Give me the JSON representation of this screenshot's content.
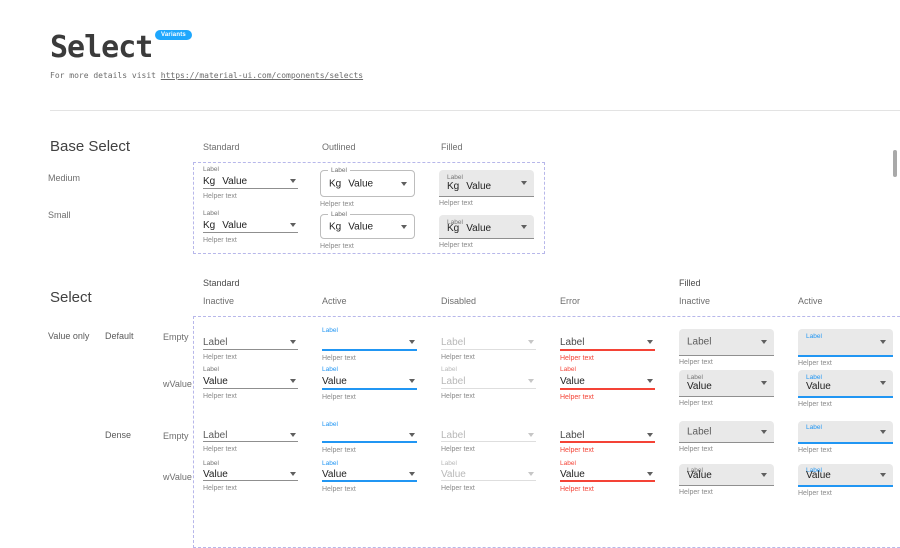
{
  "header": {
    "title": "Select",
    "badge": "Variants",
    "intro_prefix": "For more details visit ",
    "link": "https://material-ui.com/components/selects"
  },
  "base_select": {
    "heading": "Base Select",
    "column_headers": [
      "Standard",
      "Outlined",
      "Filled"
    ],
    "row_labels": [
      "Medium",
      "Small"
    ],
    "field": {
      "label": "Label",
      "adornment": "Kg",
      "value": "Value",
      "helper": "Helper text"
    }
  },
  "select_section": {
    "heading": "Select",
    "group_headers": [
      "Standard",
      "Filled"
    ],
    "state_headers": [
      "Inactive",
      "Active",
      "Disabled",
      "Error",
      "Inactive",
      "Active"
    ],
    "columns": [
      {
        "group": "Standard",
        "variant": "standard",
        "state": "inactive"
      },
      {
        "group": "Standard",
        "variant": "standard",
        "state": "active"
      },
      {
        "group": "Standard",
        "variant": "standard",
        "state": "disabled"
      },
      {
        "group": "Standard",
        "variant": "standard",
        "state": "error"
      },
      {
        "group": "Filled",
        "variant": "filled",
        "state": "inactive"
      },
      {
        "group": "Filled",
        "variant": "filled",
        "state": "active"
      }
    ],
    "rows": [
      {
        "case": "Value only",
        "group": "Default",
        "label": "Empty",
        "content": "empty",
        "dense": false
      },
      {
        "label": "wValue",
        "content": "value",
        "dense": false
      },
      {
        "group": "Dense",
        "label": "Empty",
        "content": "empty",
        "dense": true
      },
      {
        "label": "wValue",
        "content": "value",
        "dense": true
      }
    ],
    "field": {
      "label": "Label",
      "value": "Value",
      "helper": "Helper text"
    },
    "value_text_overrides": [
      {
        "row": 1,
        "col": 2,
        "text": "Label"
      }
    ]
  },
  "colors": {
    "accent": "#2196f3",
    "error": "#f44336",
    "badge": "#1ea7fd",
    "filled-bg": "#e9e9e9",
    "dash": "#b7b7ea"
  }
}
